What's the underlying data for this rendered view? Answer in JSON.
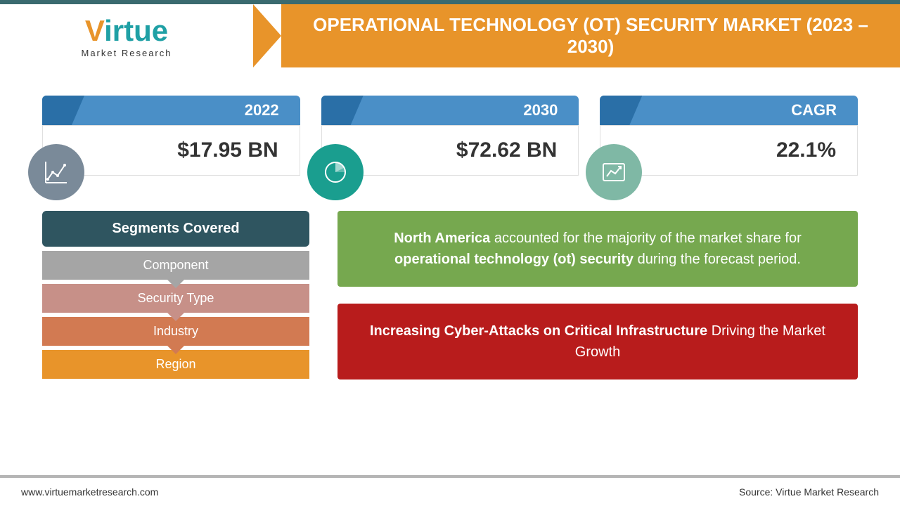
{
  "colors": {
    "orange": "#e8942a",
    "teal_dark": "#3a6a6f",
    "teal": "#1fa0a5",
    "blue_tab": "#4a8fc7",
    "blue_notch": "#2a6fa7",
    "slate_icon": "#7a8a99",
    "green_icon": "#1a9e8f",
    "mint_icon": "#7fb8a5",
    "seg_header": "#2f5560",
    "seg1": "#a5a5a5",
    "seg2": "#c79088",
    "seg3": "#d27a52",
    "seg4": "#e8942a",
    "callout_green": "#76a84f",
    "callout_red": "#b81c1c",
    "footer_gray": "#b5b5b5"
  },
  "header": {
    "logo_main": "Virtue",
    "logo_v_color": "#e8942a",
    "logo_rest_color": "#1fa0a5",
    "logo_sub": "Market Research",
    "title": "OPERATIONAL TECHNOLOGY (OT) SECURITY MARKET (2023 – 2030)"
  },
  "stats": [
    {
      "label": "2022",
      "value": "$17.95 BN",
      "icon_bg": "#7a8a99",
      "icon": "line-chart-icon"
    },
    {
      "label": "2030",
      "value": "$72.62 BN",
      "icon_bg": "#1a9e8f",
      "icon": "pie-chart-icon"
    },
    {
      "label": "CAGR",
      "value": "22.1%",
      "icon_bg": "#7fb8a5",
      "icon": "growth-chart-icon"
    }
  ],
  "segments": {
    "header": "Segments Covered",
    "items": [
      "Component",
      "Security Type",
      "Industry",
      "Region"
    ],
    "item_colors": [
      "#a5a5a5",
      "#c79088",
      "#d27a52",
      "#e8942a"
    ]
  },
  "callouts": [
    {
      "bg": "#76a84f",
      "html": "<b>North America</b> accounted for the majority of the market share for <b>operational technology (ot) security</b> during the forecast period."
    },
    {
      "bg": "#b81c1c",
      "html": "<b>Increasing Cyber-Attacks on Critical Infrastructure</b> Driving the Market Growth"
    }
  ],
  "footer": {
    "left": "www.virtuemarketresearch.com",
    "right": "Source: Virtue Market Research"
  }
}
